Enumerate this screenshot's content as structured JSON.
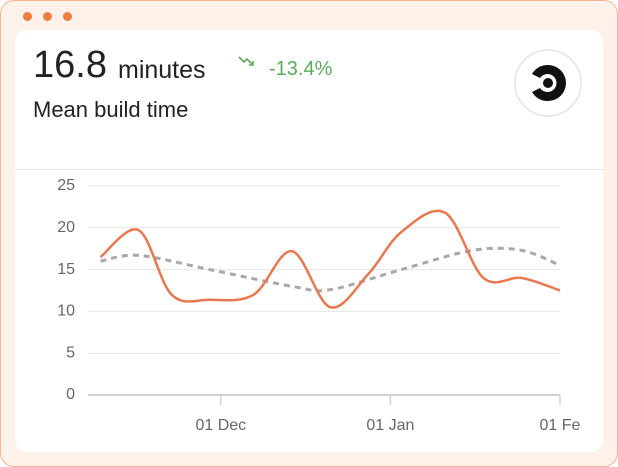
{
  "header": {
    "value": "16.8",
    "unit": "minutes",
    "change": "-13.4%",
    "label": "Mean build time"
  },
  "chart_data": {
    "type": "line",
    "xlim": [
      0,
      85
    ],
    "xticks": [
      {
        "value": 23,
        "label": "01 Dec"
      },
      {
        "value": 54,
        "label": "01 Jan"
      },
      {
        "value": 85,
        "label": "01 Fe"
      }
    ],
    "ylim": [
      0,
      25
    ],
    "yticks": [
      0,
      5,
      10,
      15,
      20,
      25
    ],
    "grid": true,
    "series": [
      {
        "color": "#e8784f",
        "dashed": false,
        "x": [
          1,
          8,
          14,
          21,
          29,
          36,
          43,
          50,
          56,
          64,
          71,
          78,
          85
        ],
        "values": [
          16.5,
          19.7,
          12,
          11.4,
          12,
          17.2,
          10.5,
          14.5,
          19.5,
          21.8,
          14,
          14,
          12.5
        ]
      },
      {
        "color": "#a8a8a8",
        "dashed": true,
        "x": [
          1,
          8,
          21,
          36,
          43,
          56,
          69,
          78,
          85
        ],
        "values": [
          16,
          16.7,
          15,
          13,
          12.6,
          15,
          17.3,
          17.3,
          15.5
        ]
      }
    ]
  }
}
